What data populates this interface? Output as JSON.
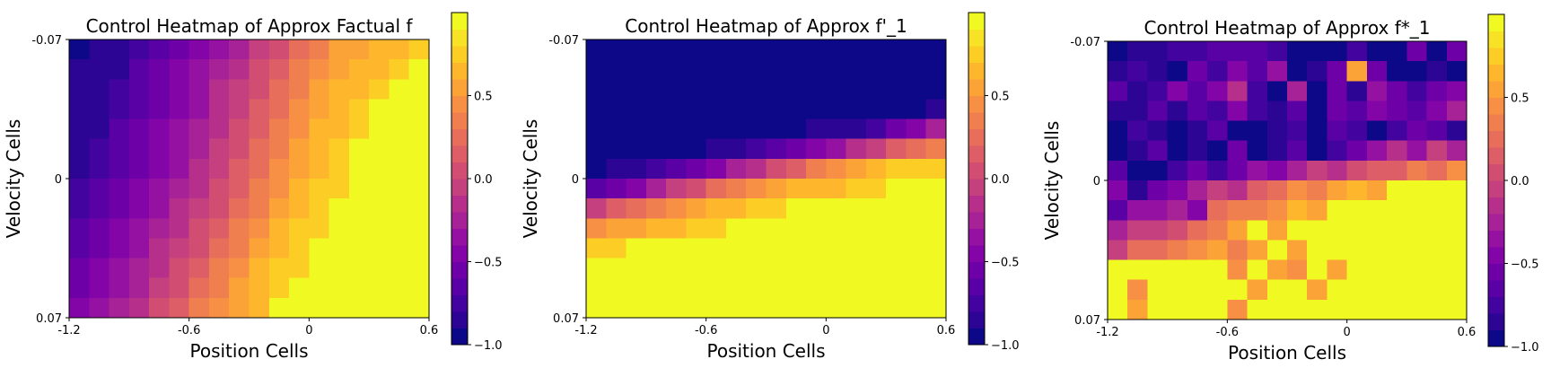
{
  "colormap": {
    "name": "plasma (discrete, 20 levels)",
    "colors": [
      "#0d0887",
      "#2c0594",
      "#43039e",
      "#5901a5",
      "#6e00a8",
      "#8305a7",
      "#9511a1",
      "#a72197",
      "#b6308b",
      "#c5407e",
      "#d14e72",
      "#dd5e66",
      "#e76e5b",
      "#f07f4f",
      "#f79044",
      "#fca338",
      "#feb72d",
      "#fccd25",
      "#f7e225",
      "#f0f921"
    ]
  },
  "chart_data": [
    {
      "type": "heatmap",
      "title": "Control Heatmap of Approx Factual f",
      "xlabel": "Position Cells",
      "ylabel": "Velocity Cells",
      "xticks": [
        "-1.2",
        "-0.6",
        "0",
        "0.6"
      ],
      "yticks": [
        "-0.07",
        "0",
        "0.07"
      ],
      "colorbar": {
        "min": -1.0,
        "max": 1.0,
        "ticks": [
          "0.5",
          "0.0",
          "−0.5",
          "−1.0"
        ]
      },
      "grid_rows": 14,
      "grid_cols": 18,
      "values": [
        [
          -0.95,
          -0.85,
          -0.8,
          -0.75,
          -0.7,
          -0.6,
          -0.5,
          -0.35,
          -0.25,
          -0.1,
          0.05,
          0.2,
          0.35,
          0.5,
          0.55,
          0.6,
          0.65,
          0.7
        ],
        [
          -0.85,
          -0.85,
          -0.8,
          -0.7,
          -0.6,
          -0.5,
          -0.4,
          -0.3,
          -0.15,
          0,
          0.15,
          0.3,
          0.45,
          0.55,
          0.6,
          0.65,
          0.7,
          0.95
        ],
        [
          -0.85,
          -0.8,
          -0.75,
          -0.7,
          -0.6,
          -0.5,
          -0.35,
          -0.2,
          -0.1,
          0.05,
          0.2,
          0.35,
          0.5,
          0.6,
          0.65,
          0.7,
          0.95,
          0.95
        ],
        [
          -0.85,
          -0.8,
          -0.75,
          -0.65,
          -0.55,
          -0.45,
          -0.35,
          -0.2,
          -0.05,
          0.1,
          0.25,
          0.4,
          0.55,
          0.6,
          0.7,
          0.95,
          0.95,
          0.95
        ],
        [
          -0.8,
          -0.8,
          -0.7,
          -0.6,
          -0.5,
          -0.4,
          -0.3,
          -0.15,
          0,
          0.15,
          0.3,
          0.45,
          0.6,
          0.65,
          0.7,
          0.95,
          0.95,
          0.95
        ],
        [
          -0.8,
          -0.75,
          -0.7,
          -0.6,
          -0.5,
          -0.4,
          -0.25,
          -0.1,
          0.05,
          0.2,
          0.35,
          0.5,
          0.6,
          0.7,
          0.95,
          0.95,
          0.95,
          0.95
        ],
        [
          -0.8,
          -0.75,
          -0.65,
          -0.55,
          -0.45,
          -0.35,
          -0.2,
          -0.05,
          0.1,
          0.25,
          0.4,
          0.55,
          0.65,
          0.75,
          0.95,
          0.95,
          0.95,
          0.95
        ],
        [
          -0.75,
          -0.7,
          -0.6,
          -0.5,
          -0.4,
          -0.3,
          -0.15,
          0,
          0.15,
          0.3,
          0.45,
          0.6,
          0.7,
          0.75,
          0.95,
          0.95,
          0.95,
          0.95
        ],
        [
          -0.75,
          -0.65,
          -0.55,
          -0.45,
          -0.35,
          -0.2,
          -0.1,
          0.05,
          0.2,
          0.35,
          0.5,
          0.65,
          0.7,
          0.95,
          0.95,
          0.95,
          0.95,
          0.95
        ],
        [
          -0.7,
          -0.6,
          -0.5,
          -0.4,
          -0.3,
          -0.15,
          0,
          0.15,
          0.3,
          0.45,
          0.6,
          0.7,
          0.75,
          0.95,
          0.95,
          0.95,
          0.95,
          0.95
        ],
        [
          -0.65,
          -0.55,
          -0.45,
          -0.35,
          -0.2,
          -0.1,
          0.05,
          0.2,
          0.35,
          0.5,
          0.65,
          0.7,
          0.95,
          0.95,
          0.95,
          0.95,
          0.95,
          0.95
        ],
        [
          -0.6,
          -0.5,
          -0.4,
          -0.3,
          -0.15,
          0,
          0.15,
          0.3,
          0.45,
          0.6,
          0.7,
          0.75,
          0.95,
          0.95,
          0.95,
          0.95,
          0.95,
          0.95
        ],
        [
          -0.55,
          -0.45,
          -0.35,
          -0.25,
          -0.1,
          0.05,
          0.2,
          0.35,
          0.5,
          0.6,
          0.7,
          0.95,
          0.95,
          0.95,
          0.95,
          0.95,
          0.95,
          0.95
        ],
        [
          -0.5,
          -0.4,
          -0.3,
          -0.15,
          0,
          0.15,
          0.3,
          0.45,
          0.55,
          0.65,
          0.95,
          0.95,
          0.95,
          0.95,
          0.95,
          0.95,
          0.95,
          0.95
        ]
      ]
    },
    {
      "type": "heatmap",
      "title": "Control Heatmap of Approx f'_1",
      "xlabel": "Position Cells",
      "ylabel": "Velocity Cells",
      "xticks": [
        "-1.2",
        "-0.6",
        "0",
        "0.6"
      ],
      "yticks": [
        "-0.07",
        "0",
        "0.07"
      ],
      "colorbar": {
        "min": -1.0,
        "max": 1.0,
        "ticks": [
          "0.5",
          "0.0",
          "−0.5",
          "−1.0"
        ]
      },
      "grid_rows": 14,
      "grid_cols": 18,
      "values": [
        [
          -0.98,
          -0.98,
          -0.98,
          -0.98,
          -0.98,
          -0.98,
          -0.98,
          -0.98,
          -0.98,
          -0.98,
          -0.98,
          -0.98,
          -0.98,
          -0.98,
          -0.98,
          -0.98,
          -0.98,
          -0.98
        ],
        [
          -0.98,
          -0.98,
          -0.98,
          -0.98,
          -0.98,
          -0.98,
          -0.98,
          -0.98,
          -0.98,
          -0.98,
          -0.98,
          -0.98,
          -0.98,
          -0.98,
          -0.98,
          -0.98,
          -0.98,
          -0.98
        ],
        [
          -0.98,
          -0.98,
          -0.98,
          -0.98,
          -0.98,
          -0.98,
          -0.98,
          -0.98,
          -0.98,
          -0.98,
          -0.98,
          -0.98,
          -0.98,
          -0.98,
          -0.98,
          -0.98,
          -0.98,
          -0.98
        ],
        [
          -0.98,
          -0.98,
          -0.98,
          -0.98,
          -0.98,
          -0.98,
          -0.98,
          -0.98,
          -0.98,
          -0.98,
          -0.98,
          -0.98,
          -0.98,
          -0.98,
          -0.95,
          -0.9,
          -0.9,
          -0.85
        ],
        [
          -0.98,
          -0.98,
          -0.98,
          -0.98,
          -0.98,
          -0.98,
          -0.98,
          -0.98,
          -0.98,
          -0.95,
          -0.9,
          -0.85,
          -0.85,
          -0.8,
          -0.75,
          -0.6,
          -0.45,
          -0.25
        ],
        [
          -0.98,
          -0.98,
          -0.98,
          -0.98,
          -0.98,
          -0.9,
          -0.85,
          -0.8,
          -0.75,
          -0.7,
          -0.6,
          -0.5,
          -0.35,
          -0.2,
          -0.05,
          0.1,
          0.25,
          0.35
        ],
        [
          -0.9,
          -0.85,
          -0.8,
          -0.75,
          -0.65,
          -0.55,
          -0.45,
          -0.3,
          -0.15,
          0,
          0.15,
          0.3,
          0.45,
          0.55,
          0.65,
          0.7,
          0.7,
          0.75
        ],
        [
          -0.7,
          -0.6,
          -0.45,
          -0.25,
          -0.1,
          0.05,
          0.2,
          0.35,
          0.45,
          0.55,
          0.6,
          0.65,
          0.65,
          0.7,
          0.7,
          0.95,
          0.95,
          0.95
        ],
        [
          -0.05,
          0.1,
          0.25,
          0.35,
          0.45,
          0.55,
          0.6,
          0.65,
          0.7,
          0.7,
          0.95,
          0.95,
          0.95,
          0.95,
          0.95,
          0.95,
          0.95,
          0.95
        ],
        [
          0.4,
          0.5,
          0.55,
          0.6,
          0.65,
          0.7,
          0.7,
          0.95,
          0.95,
          0.95,
          0.95,
          0.95,
          0.95,
          0.95,
          0.95,
          0.95,
          0.95,
          0.95
        ],
        [
          0.7,
          0.75,
          0.95,
          0.95,
          0.95,
          0.95,
          0.95,
          0.95,
          0.95,
          0.95,
          0.95,
          0.95,
          0.95,
          0.95,
          0.95,
          0.95,
          0.95,
          0.95
        ],
        [
          0.95,
          0.95,
          0.95,
          0.95,
          0.95,
          0.95,
          0.95,
          0.95,
          0.95,
          0.95,
          0.95,
          0.95,
          0.95,
          0.95,
          0.95,
          0.95,
          0.95,
          0.95
        ],
        [
          0.95,
          0.95,
          0.95,
          0.95,
          0.95,
          0.95,
          0.95,
          0.95,
          0.95,
          0.95,
          0.95,
          0.95,
          0.95,
          0.95,
          0.95,
          0.95,
          0.95,
          0.95
        ],
        [
          0.95,
          0.95,
          0.95,
          0.95,
          0.95,
          0.95,
          0.95,
          0.95,
          0.95,
          0.95,
          0.95,
          0.95,
          0.95,
          0.95,
          0.95,
          0.95,
          0.95,
          0.95
        ]
      ]
    },
    {
      "type": "heatmap",
      "title": "Control Heatmap of Approx f*_1",
      "xlabel": "Position Cells",
      "ylabel": "Velocity Cells",
      "xticks": [
        "-1.2",
        "-0.6",
        "0",
        "0.6"
      ],
      "yticks": [
        "-0.07",
        "0",
        "0.07"
      ],
      "colorbar": {
        "min": -1.0,
        "max": 1.0,
        "ticks": [
          "0.5",
          "0.0",
          "−0.5",
          "−1.0"
        ]
      },
      "grid_rows": 14,
      "grid_cols": 18,
      "values": [
        [
          -0.9,
          -0.8,
          -0.85,
          -0.75,
          -0.75,
          -0.7,
          -0.7,
          -0.65,
          -0.75,
          -0.9,
          -0.95,
          -0.95,
          -0.75,
          -0.95,
          -0.95,
          -0.6,
          -0.9,
          -0.6
        ],
        [
          -0.8,
          -0.75,
          -0.8,
          -0.95,
          -0.6,
          -0.75,
          -0.5,
          -0.7,
          -0.4,
          -0.95,
          -0.85,
          -0.6,
          0.5,
          -0.6,
          -0.95,
          -0.95,
          -0.85,
          -0.95
        ],
        [
          -0.7,
          -0.85,
          -0.75,
          -0.5,
          -0.7,
          -0.5,
          -0.15,
          -0.75,
          -0.9,
          -0.3,
          -0.95,
          -0.6,
          -0.8,
          -0.4,
          -0.6,
          -0.75,
          -0.55,
          -0.45
        ],
        [
          -0.8,
          -0.85,
          -0.65,
          -0.85,
          -0.7,
          -0.75,
          -0.45,
          -0.75,
          -0.8,
          -0.65,
          -0.95,
          -0.55,
          -0.7,
          -0.5,
          -0.6,
          -0.65,
          -0.45,
          -0.3
        ],
        [
          -0.9,
          -0.75,
          -0.8,
          -0.95,
          -0.85,
          -0.65,
          -0.95,
          -0.95,
          -0.85,
          -0.75,
          -0.95,
          -0.7,
          -0.75,
          -0.95,
          -0.75,
          -0.55,
          -0.7,
          -0.8
        ],
        [
          -0.95,
          -0.8,
          -0.7,
          -0.95,
          -0.85,
          -0.95,
          -0.6,
          -0.95,
          -0.85,
          -0.65,
          -0.9,
          -0.75,
          -0.55,
          -0.4,
          -0.2,
          -0.35,
          -0.1,
          -0.25
        ],
        [
          -0.7,
          -0.95,
          -0.9,
          -0.75,
          -0.55,
          -0.75,
          -0.55,
          -0.35,
          -0.5,
          -0.3,
          -0.1,
          -0.2,
          0.05,
          0.1,
          0.15,
          0.35,
          0.25,
          0.4
        ],
        [
          -0.5,
          -0.8,
          -0.6,
          -0.45,
          -0.3,
          -0.1,
          -0.15,
          0.1,
          0.2,
          0.4,
          0.35,
          0.5,
          0.6,
          0.5,
          0.95,
          0.95,
          0.95,
          0.95
        ],
        [
          -0.65,
          -0.4,
          -0.35,
          -0.3,
          -0.5,
          0.2,
          0.35,
          0.3,
          0.45,
          0.6,
          0.55,
          0.95,
          0.95,
          0.95,
          0.95,
          0.95,
          0.95,
          0.95
        ],
        [
          -0.25,
          -0.05,
          -0.1,
          0.05,
          0.25,
          0.35,
          0.55,
          0.95,
          0.55,
          0.95,
          0.95,
          0.95,
          0.95,
          0.95,
          0.95,
          0.95,
          0.95,
          0.95
        ],
        [
          -0.1,
          0.25,
          0.25,
          0.35,
          0.4,
          0.55,
          0.3,
          0.55,
          0.95,
          0.55,
          0.95,
          0.95,
          0.95,
          0.95,
          0.95,
          0.95,
          0.95,
          0.95
        ],
        [
          0.95,
          0.95,
          0.95,
          0.95,
          0.95,
          0.95,
          0.4,
          0.95,
          0.55,
          0.4,
          0.95,
          0.55,
          0.95,
          0.95,
          0.95,
          0.95,
          0.95,
          0.95
        ],
        [
          0.95,
          0.45,
          0.95,
          0.95,
          0.95,
          0.95,
          0.95,
          0.55,
          0.95,
          0.95,
          0.55,
          0.95,
          0.95,
          0.95,
          0.95,
          0.95,
          0.95,
          0.95
        ],
        [
          0.95,
          0.55,
          0.95,
          0.95,
          0.95,
          0.95,
          0.4,
          0.95,
          0.95,
          0.95,
          0.95,
          0.95,
          0.95,
          0.95,
          0.95,
          0.95,
          0.95,
          0.95
        ]
      ]
    }
  ]
}
